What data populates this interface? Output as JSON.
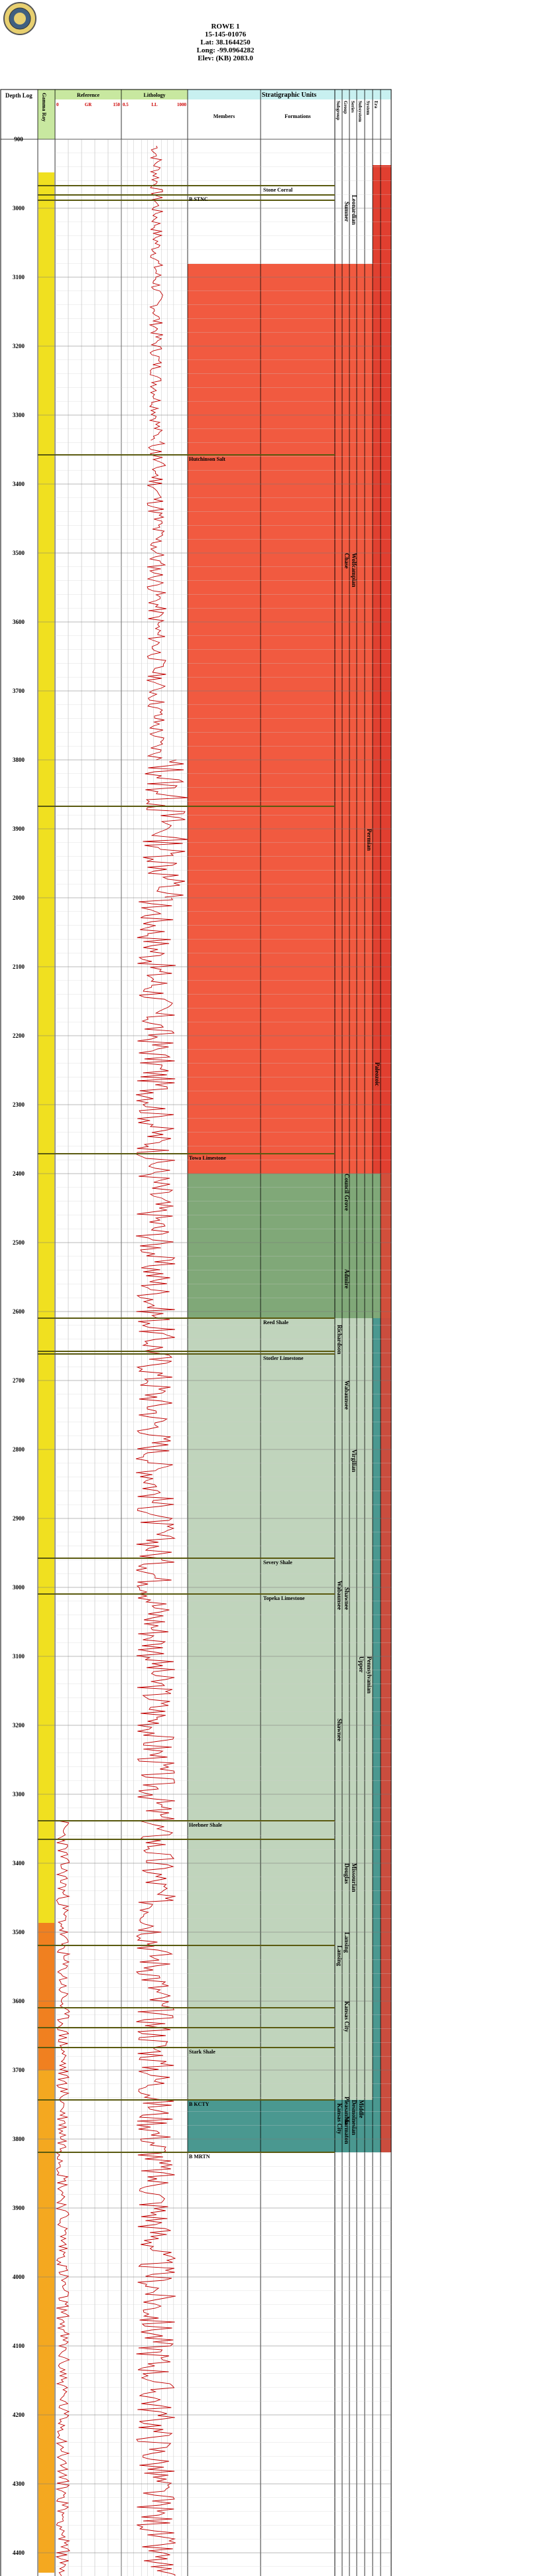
{
  "well": {
    "name": "ROWE 1",
    "api": "15-145-01076",
    "lat": "Lat: 38.1644250",
    "long": "Long: -99.0964282",
    "elev": "Elev: (KB) 2083.0"
  },
  "track_headers": {
    "depth_log": "Depth Log",
    "gamma_ray": "Gamma Ray",
    "reference": "Reference",
    "lithology": "Lithology",
    "strat_units": "Stratigraphic Units",
    "members": "Members",
    "formations": "Formations",
    "subgroup": "Subgroup",
    "group": "Group",
    "series": "Series",
    "subsystem": "Subsystem",
    "system": "System",
    "era": "Era",
    "gr_min": "0",
    "gr_label": "GR",
    "gr_max": "150",
    "ll_min": "0.5",
    "ll_label": "LL",
    "ll_max": "1000"
  },
  "depth_ticks": [
    "900",
    "3000",
    "3100",
    "3200",
    "3300",
    "3400",
    "3500",
    "3600",
    "3700",
    "3800",
    "3900",
    "2000",
    "2100",
    "2200",
    "2300",
    "2400",
    "2500",
    "2600",
    "2700",
    "2800",
    "2900",
    "3000",
    "3100",
    "3200",
    "3300",
    "3400",
    "3500",
    "3600",
    "3700",
    "3800",
    "3900",
    "4000",
    "4100",
    "4200",
    "4300",
    "4400"
  ],
  "tops": [
    {
      "label": "Stone Corral",
      "col": "formation"
    },
    {
      "label": "B STNC",
      "col": "member"
    },
    {
      "label": "Hutchinson Salt",
      "col": "member"
    },
    {
      "label": "Towa Limestone",
      "col": "member"
    },
    {
      "label": "Reed Shale",
      "col": "formation"
    },
    {
      "label": "Stotler Limestone",
      "col": "formation"
    },
    {
      "label": "Severy Shale",
      "col": "formation"
    },
    {
      "label": "Topeka Limestone",
      "col": "formation"
    },
    {
      "label": "Heebner Shale",
      "col": "member"
    },
    {
      "label": "Stark Shale",
      "col": "member"
    },
    {
      "label": "B KCTY",
      "col": "member"
    },
    {
      "label": "B MRTN",
      "col": "member"
    }
  ],
  "units": {
    "subgroup": [
      "Richardson",
      "Wabaunsee",
      "Shawnee",
      "Lansing",
      "Kansas City"
    ],
    "group": [
      "Sumner",
      "Chase",
      "Council Grove",
      "Admire",
      "Wabaunsee",
      "Shawnee",
      "Douglas",
      "Lansing",
      "Kansas City",
      "Pleasanton",
      "Marmaton"
    ],
    "series": [
      "Leonardian",
      "Wolfcampian",
      "Virgilian",
      "Missourian",
      "Desmoinesian"
    ],
    "subsystem": [
      "Upper",
      "Middle"
    ],
    "system": [
      "Permian",
      "Pennsylvanian"
    ],
    "era": [
      "Paleozoic"
    ]
  },
  "legend": {
    "title": "GR (API)",
    "min": "0",
    "max": "150"
  },
  "colors": {
    "header_green": "#c8e8a0",
    "header_cyan": "#c8f0f0",
    "permian_red": "#e04030",
    "salt_red": "#f04c30",
    "green_zone": "#80a878",
    "pale_green": "#c0d4bc",
    "teal": "#4a9890",
    "gamma_yellow": "#f0e020"
  }
}
